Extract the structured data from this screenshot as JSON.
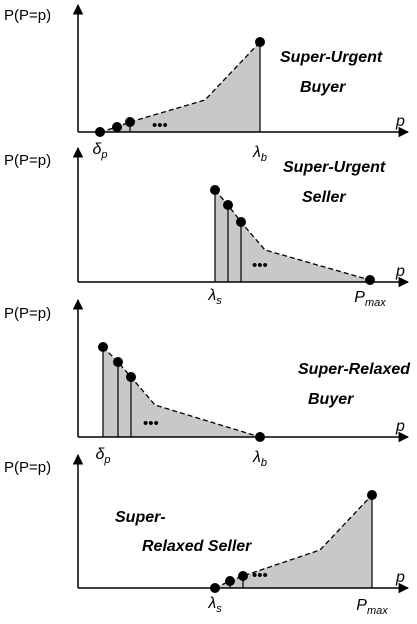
{
  "panels": [
    {
      "y_label": "P(P=p)",
      "x_label": "p",
      "ellipsis": "•••",
      "title_lines": [
        "Super-Urgent",
        "Buyer"
      ],
      "markers": [
        {
          "symbol": "δ",
          "sub": "p"
        },
        {
          "symbol": "λ",
          "sub": "b"
        }
      ]
    },
    {
      "y_label": "P(P=p)",
      "x_label": "p",
      "ellipsis": "•••",
      "title_lines": [
        "Super-Urgent",
        "Seller"
      ],
      "markers": [
        {
          "symbol": "λ",
          "sub": "s"
        },
        {
          "symbol": "P",
          "sub": "max"
        }
      ]
    },
    {
      "y_label": "P(P=p)",
      "x_label": "p",
      "ellipsis": "•••",
      "title_lines": [
        "Super-Relaxed",
        "Buyer"
      ],
      "markers": [
        {
          "symbol": "δ",
          "sub": "p"
        },
        {
          "symbol": "λ",
          "sub": "b"
        }
      ]
    },
    {
      "y_label": "P(P=p)",
      "x_label": "p",
      "ellipsis": "•••",
      "title_lines": [
        "Super-",
        "Relaxed Seller"
      ],
      "markers": [
        {
          "symbol": "λ",
          "sub": "s"
        },
        {
          "symbol": "P",
          "sub": "max"
        }
      ]
    }
  ]
}
